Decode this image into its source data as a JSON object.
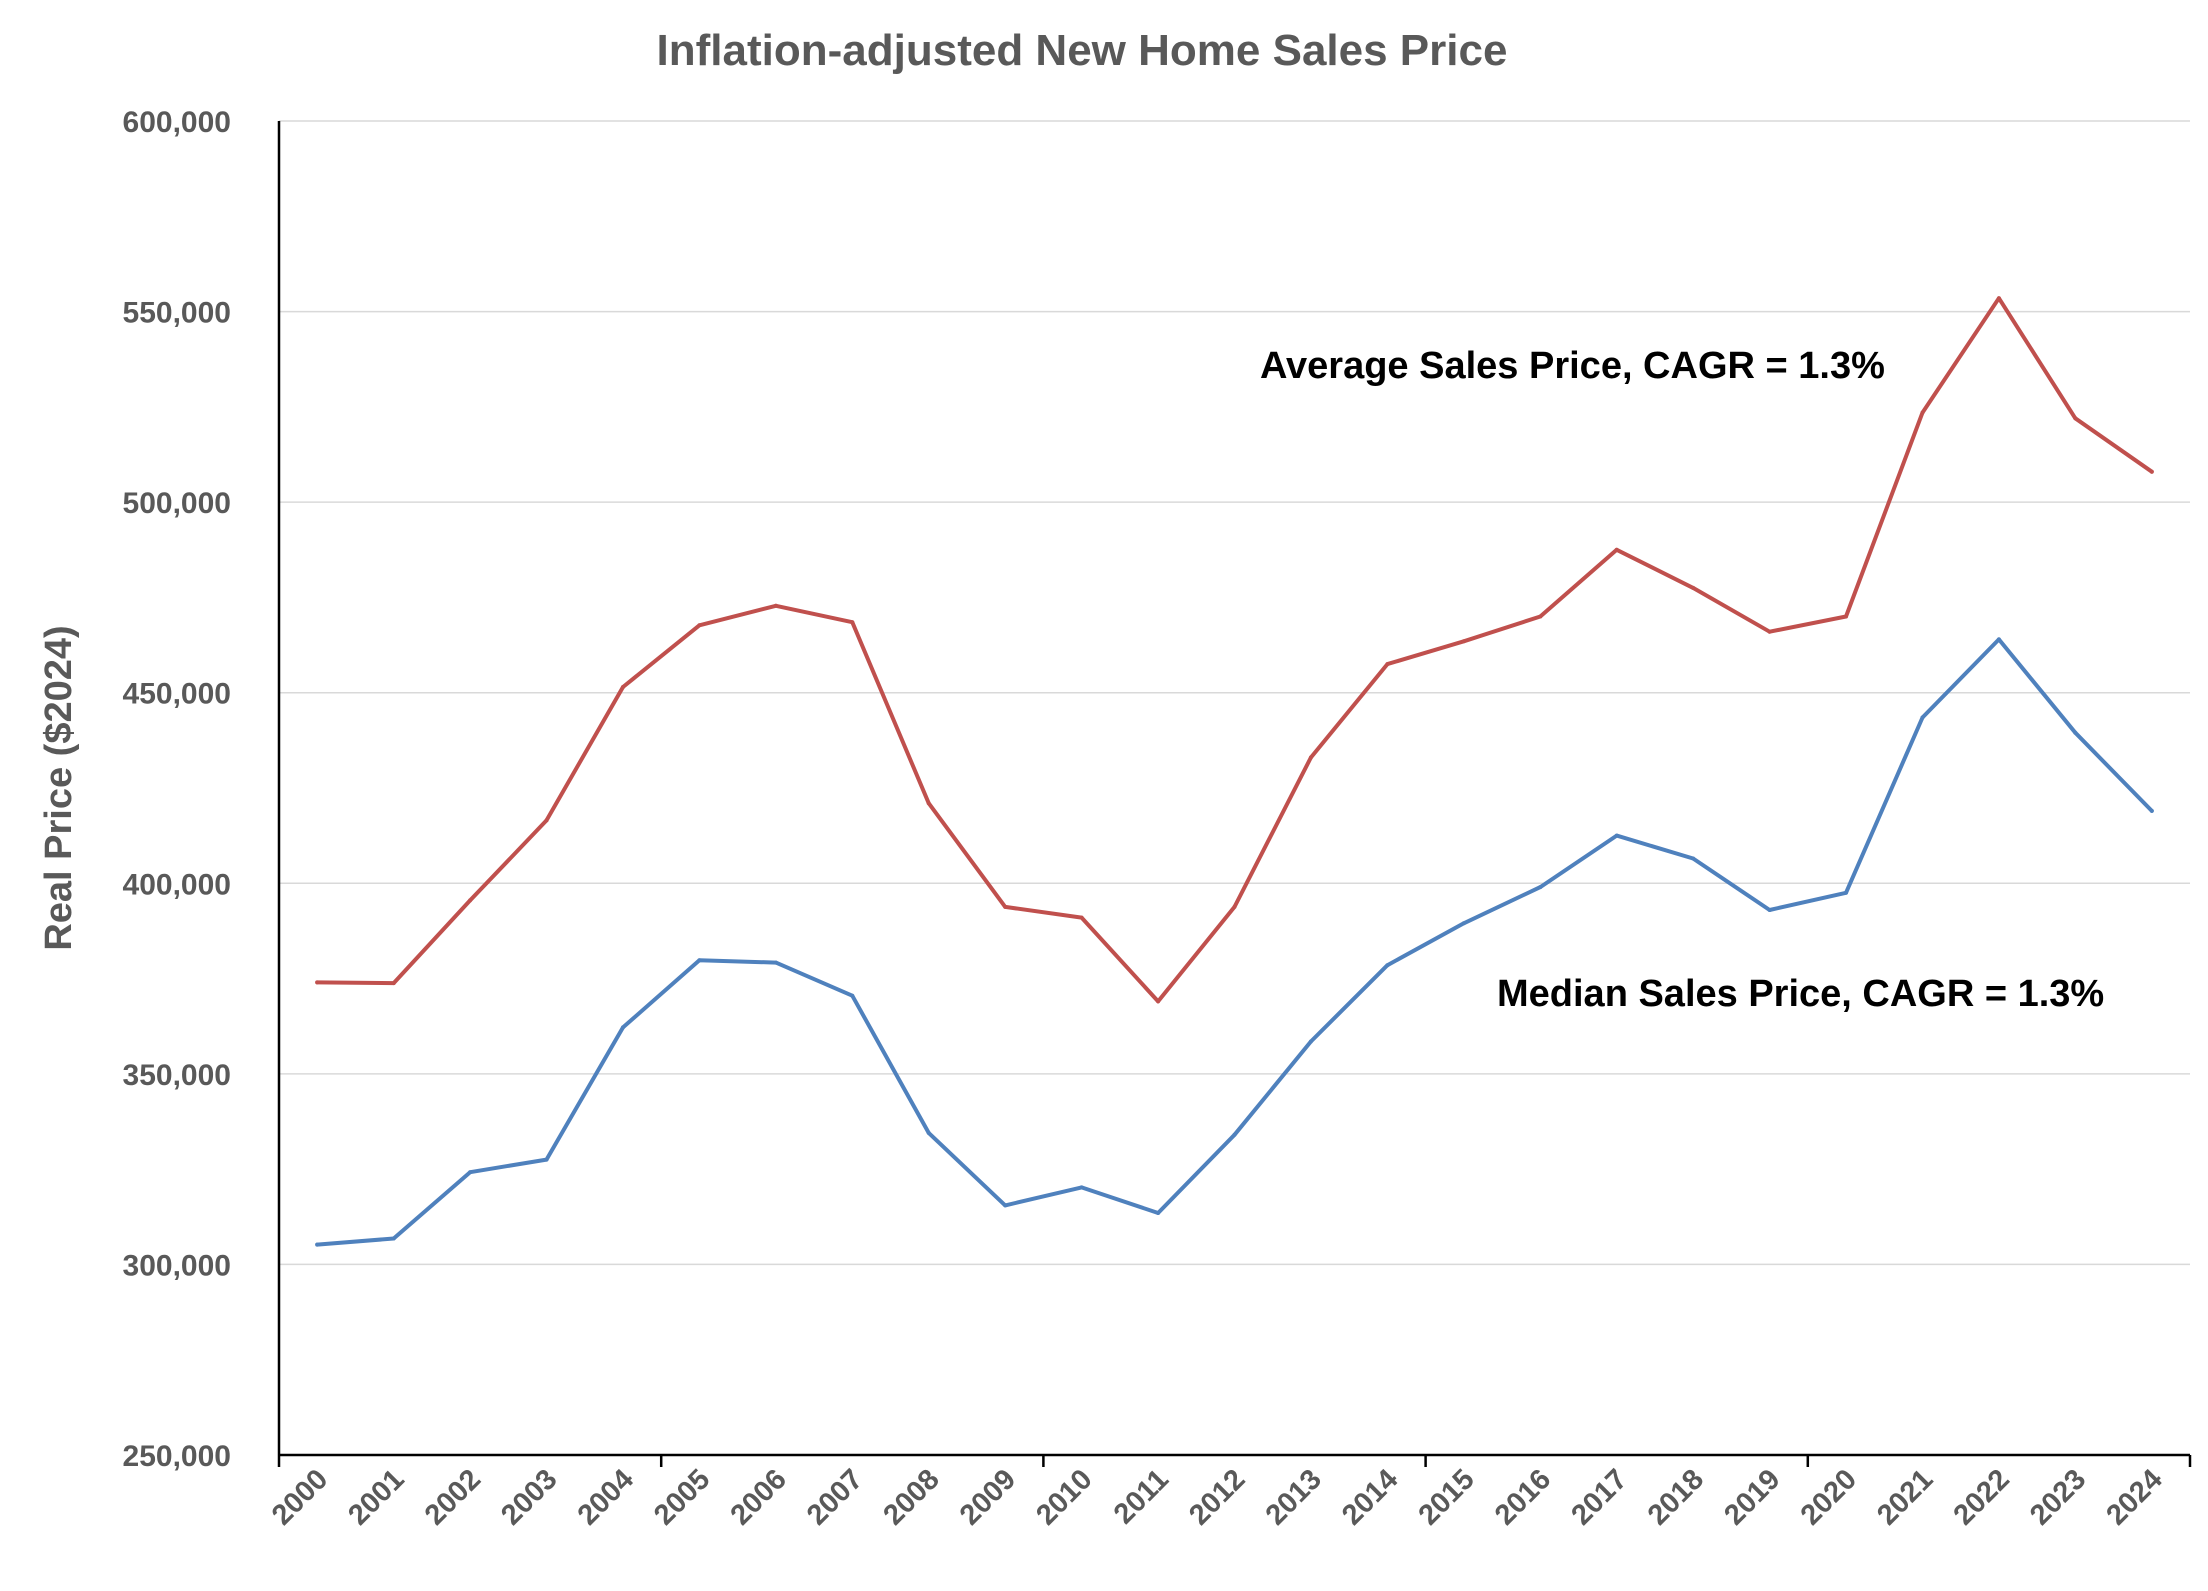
{
  "chart_data": {
    "type": "line",
    "title": "Inflation-adjusted New Home Sales Price",
    "xlabel": "",
    "ylabel": "Real Price ($2024)",
    "ylim": [
      250000,
      600000
    ],
    "y_ticks": [
      250000,
      300000,
      350000,
      400000,
      450000,
      500000,
      550000,
      600000
    ],
    "y_tick_labels": [
      "250,000",
      "300,000",
      "350,000",
      "400,000",
      "450,000",
      "500,000",
      "550,000",
      "600,000"
    ],
    "categories": [
      "2000",
      "2001",
      "2002",
      "2003",
      "2004",
      "2005",
      "2006",
      "2007",
      "2008",
      "2009",
      "2010",
      "2011",
      "2012",
      "2013",
      "2014",
      "2015",
      "2016",
      "2017",
      "2018",
      "2019",
      "2020",
      "2021",
      "2022",
      "2023",
      "2024"
    ],
    "grid": "horizontal",
    "series": [
      {
        "name": "Average Sales Price",
        "color": "#c0504d",
        "values": [
          374000,
          373800,
          395500,
          416500,
          451500,
          467700,
          472800,
          468500,
          421000,
          393800,
          391000,
          369000,
          393800,
          433000,
          457500,
          463500,
          470000,
          487500,
          477500,
          466000,
          470000,
          523500,
          553500,
          522000,
          508000
        ]
      },
      {
        "name": "Median Sales Price",
        "color": "#4f81bd",
        "values": [
          305200,
          306800,
          324200,
          327500,
          362200,
          379800,
          379200,
          370500,
          334500,
          315500,
          320200,
          313500,
          334000,
          358500,
          378500,
          389500,
          399000,
          412500,
          406500,
          393000,
          397500,
          443500,
          464000,
          439500,
          419000
        ]
      }
    ],
    "annotations": [
      "Average Sales Price, CAGR = 1.3%",
      "Median Sales Price, CAGR = 1.3%"
    ]
  }
}
